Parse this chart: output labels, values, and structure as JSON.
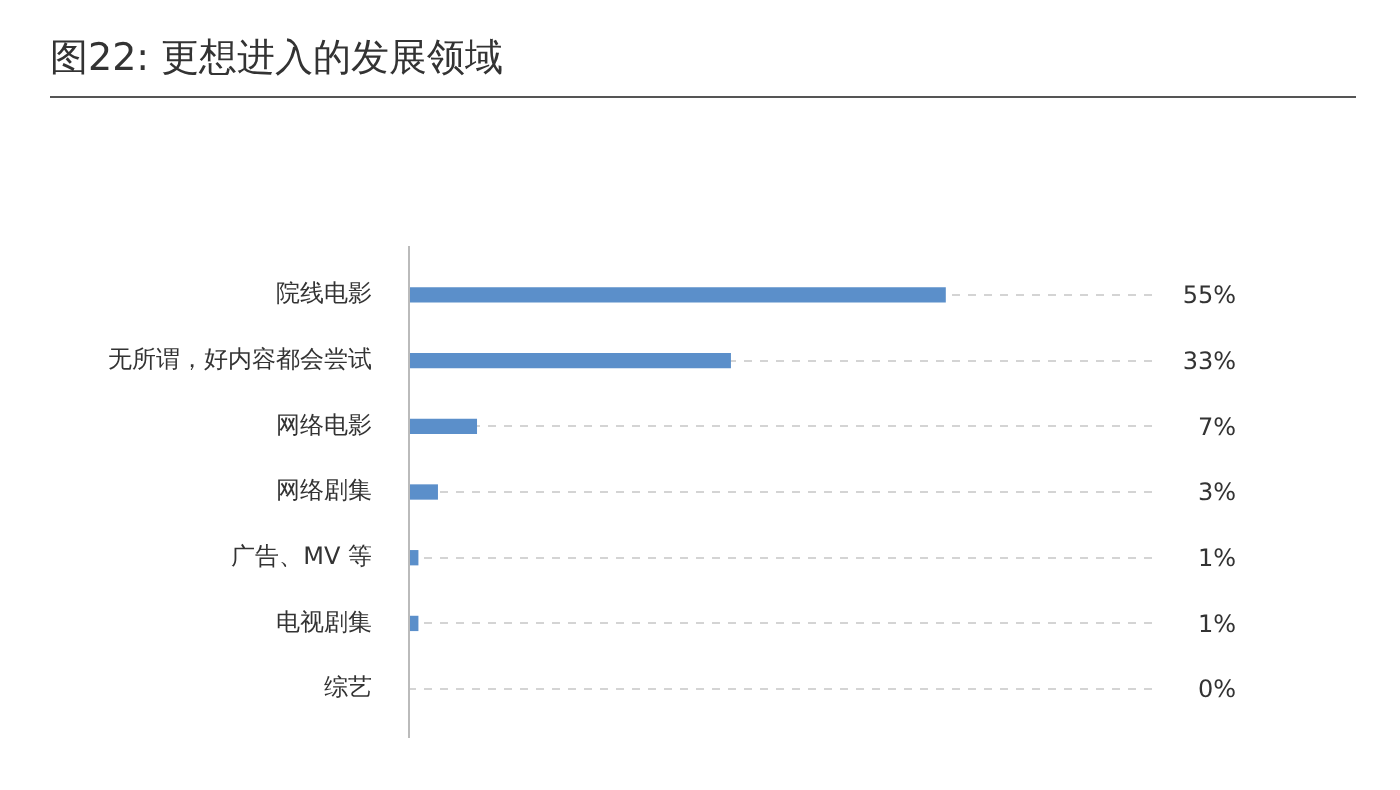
{
  "chart_data": {
    "type": "bar",
    "orientation": "horizontal",
    "title": "图22: 更想进入的发展领域",
    "categories": [
      "院线电影",
      "无所谓，好内容都会尝试",
      "网络电影",
      "网络剧集",
      "广告、MV 等",
      "电视剧集",
      "综艺"
    ],
    "values": [
      55,
      33,
      7,
      3,
      1,
      1,
      0
    ],
    "value_labels": [
      "55%",
      "33%",
      "7%",
      "3%",
      "1%",
      "1%",
      "0%"
    ],
    "color": "#5b8fca",
    "xlim": [
      0,
      77
    ],
    "grid": "y",
    "line_style": "dashed",
    "legend": false
  }
}
